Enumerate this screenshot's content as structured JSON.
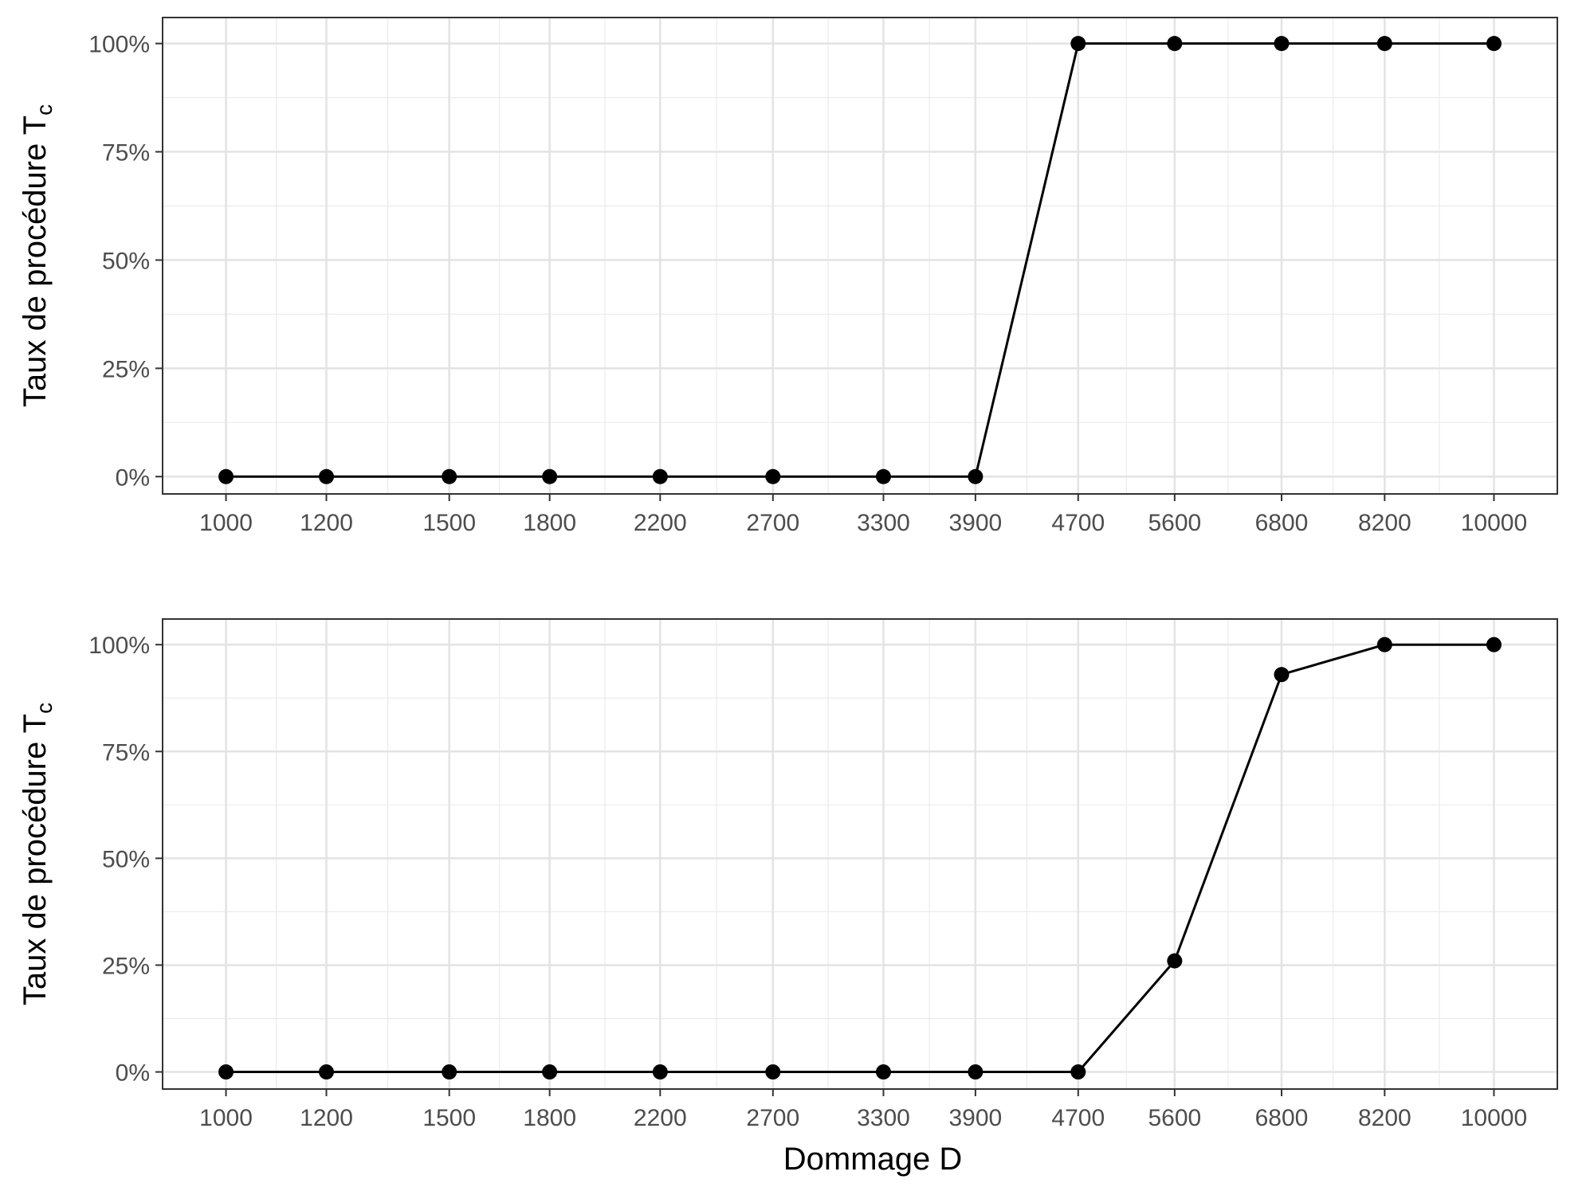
{
  "chart_data": [
    {
      "type": "line",
      "categories": [
        "1000",
        "1200",
        "1500",
        "1800",
        "2200",
        "2700",
        "3300",
        "3900",
        "4700",
        "5600",
        "6800",
        "8200",
        "10000"
      ],
      "x": [
        1000,
        1200,
        1500,
        1800,
        2200,
        2700,
        3300,
        3900,
        4700,
        5600,
        6800,
        8200,
        10000
      ],
      "values": [
        0,
        0,
        0,
        0,
        0,
        0,
        0,
        0,
        100,
        100,
        100,
        100,
        100
      ],
      "x_scale": "log",
      "ylabel_main": "Taux de procédure T",
      "ylabel_sub": "c",
      "xlabel": "",
      "ylim": [
        -4,
        106
      ],
      "yticks": [
        0,
        25,
        50,
        75,
        100
      ],
      "ytick_labels": [
        "0%",
        "25%",
        "50%",
        "75%",
        "100%"
      ],
      "grid": true,
      "color": "#000000"
    },
    {
      "type": "line",
      "categories": [
        "1000",
        "1200",
        "1500",
        "1800",
        "2200",
        "2700",
        "3300",
        "3900",
        "4700",
        "5600",
        "6800",
        "8200",
        "10000"
      ],
      "x": [
        1000,
        1200,
        1500,
        1800,
        2200,
        2700,
        3300,
        3900,
        4700,
        5600,
        6800,
        8200,
        10000
      ],
      "values": [
        0,
        0,
        0,
        0,
        0,
        0,
        0,
        0,
        0,
        26,
        93,
        100,
        100
      ],
      "x_scale": "log",
      "ylabel_main": "Taux de procédure T",
      "ylabel_sub": "c",
      "xlabel": "Dommage D",
      "ylim": [
        -4,
        106
      ],
      "yticks": [
        0,
        25,
        50,
        75,
        100
      ],
      "ytick_labels": [
        "0%",
        "25%",
        "50%",
        "75%",
        "100%"
      ],
      "grid": true,
      "color": "#000000"
    }
  ]
}
